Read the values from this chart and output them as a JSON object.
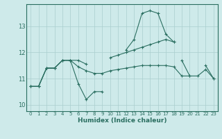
{
  "xlabel": "Humidex (Indice chaleur)",
  "bg_color": "#ceeaea",
  "grid_color": "#aacece",
  "line_color": "#2a6e60",
  "xlim": [
    -0.5,
    23.5
  ],
  "ylim": [
    9.75,
    13.85
  ],
  "yticks": [
    10,
    11,
    12,
    13
  ],
  "xticks": [
    0,
    1,
    2,
    3,
    4,
    5,
    6,
    7,
    8,
    9,
    10,
    11,
    12,
    13,
    14,
    15,
    16,
    17,
    18,
    19,
    20,
    21,
    22,
    23
  ],
  "series": [
    [
      10.7,
      10.7,
      11.4,
      11.4,
      11.7,
      11.7,
      10.8,
      10.2,
      10.5,
      10.5,
      null,
      null,
      null,
      null,
      null,
      null,
      null,
      null,
      null,
      11.7,
      11.1,
      null,
      11.5,
      11.0
    ],
    [
      null,
      null,
      null,
      null,
      null,
      null,
      null,
      null,
      null,
      null,
      null,
      null,
      12.1,
      12.5,
      13.5,
      13.6,
      13.5,
      12.7,
      12.4,
      null,
      null,
      null,
      null,
      null
    ],
    [
      10.7,
      10.7,
      11.4,
      11.4,
      11.7,
      11.7,
      11.7,
      11.55,
      null,
      null,
      11.8,
      11.9,
      12.0,
      12.1,
      12.2,
      12.3,
      12.4,
      12.5,
      12.4,
      null,
      null,
      null,
      null,
      null
    ],
    [
      10.7,
      10.7,
      11.4,
      11.4,
      11.7,
      11.7,
      11.45,
      11.3,
      11.2,
      11.2,
      11.3,
      11.35,
      11.4,
      11.45,
      11.5,
      11.5,
      11.5,
      11.5,
      11.45,
      11.1,
      11.1,
      11.1,
      11.35,
      11.0
    ]
  ]
}
